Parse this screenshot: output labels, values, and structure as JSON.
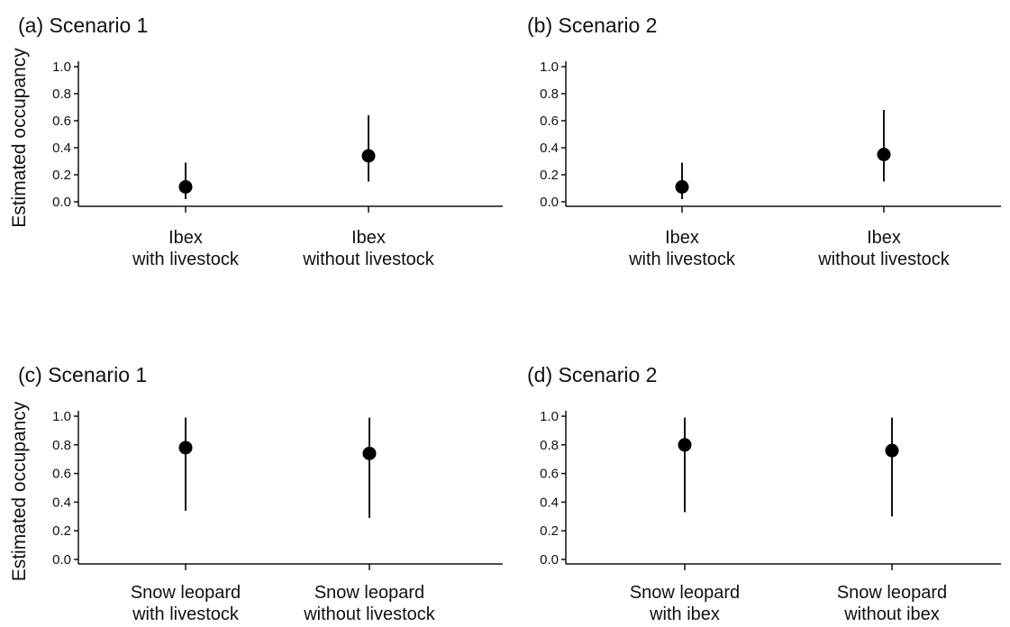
{
  "chart_data": [
    {
      "type": "scatter",
      "title": "(a) Scenario 1",
      "ylabel": "Estimated occupancy",
      "xlabel": "",
      "ylim": [
        0,
        1
      ],
      "yticks": [
        "0.0",
        "0.2",
        "0.4",
        "0.6",
        "0.8",
        "1.0"
      ],
      "categories": [
        [
          "Ibex",
          "with livestock"
        ],
        [
          "Ibex",
          "without livestock"
        ]
      ],
      "values": [
        0.11,
        0.34
      ],
      "lower": [
        0.02,
        0.15
      ],
      "upper": [
        0.29,
        0.64
      ],
      "grid": false
    },
    {
      "type": "scatter",
      "title": "(b) Scenario 2",
      "ylabel": "",
      "xlabel": "",
      "ylim": [
        0,
        1
      ],
      "yticks": [
        "0.0",
        "0.2",
        "0.4",
        "0.6",
        "0.8",
        "1.0"
      ],
      "categories": [
        [
          "Ibex",
          "with livestock"
        ],
        [
          "Ibex",
          "without livestock"
        ]
      ],
      "values": [
        0.11,
        0.35
      ],
      "lower": [
        0.02,
        0.15
      ],
      "upper": [
        0.29,
        0.68
      ],
      "grid": false
    },
    {
      "type": "scatter",
      "title": "(c) Scenario 1",
      "ylabel": "Estimated occupancy",
      "xlabel": "",
      "ylim": [
        0,
        1
      ],
      "yticks": [
        "0.0",
        "0.2",
        "0.4",
        "0.6",
        "0.8",
        "1.0"
      ],
      "categories": [
        [
          "Snow leopard",
          "with livestock"
        ],
        [
          "Snow leopard",
          "without livestock"
        ]
      ],
      "values": [
        0.78,
        0.74
      ],
      "lower": [
        0.34,
        0.29
      ],
      "upper": [
        0.99,
        0.99
      ],
      "grid": false
    },
    {
      "type": "scatter",
      "title": "(d) Scenario 2",
      "ylabel": "",
      "xlabel": "",
      "ylim": [
        0,
        1
      ],
      "yticks": [
        "0.0",
        "0.2",
        "0.4",
        "0.6",
        "0.8",
        "1.0"
      ],
      "categories": [
        [
          "Snow leopard",
          "with ibex"
        ],
        [
          "Snow leopard",
          "without ibex"
        ]
      ],
      "values": [
        0.8,
        0.76
      ],
      "lower": [
        0.33,
        0.3
      ],
      "upper": [
        0.99,
        0.99
      ],
      "grid": false
    }
  ]
}
